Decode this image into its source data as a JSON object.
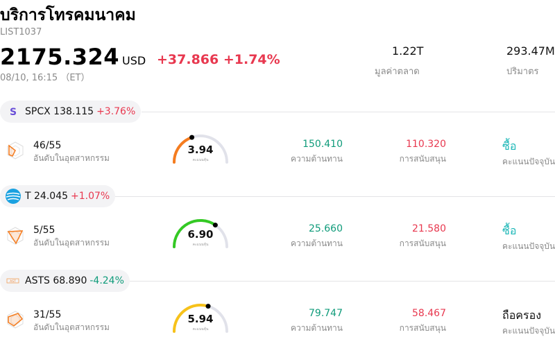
{
  "header": {
    "title": "บริการโทรคมนาคม",
    "ticker": "LIST1037",
    "price": "2175.324",
    "currency": "USD",
    "change": "+37.866 +1.74%",
    "timestamp": "08/10, 16:15 （ET）",
    "market_cap_value": "1.22T",
    "market_cap_label": "มูลค่าตลาด",
    "volume_value": "293.47M",
    "volume_label": "ปริมาตร"
  },
  "colors": {
    "up": "#e8384f",
    "down": "#0f9b7a",
    "buy": "#19b6b6"
  },
  "stocks": [
    {
      "symbol": "SPCX",
      "price": "138.115",
      "change": "+3.76%",
      "direction": "up",
      "logo": "spcx-logo-icon",
      "rank": "46/55",
      "rank_label": "อันดับในอุตสาหกรรม",
      "score": "3.94",
      "score_fraction": 0.394,
      "gauge_color": "#f57c1f",
      "score_label": "คะแนนหุ้น",
      "resistance": "150.410",
      "resistance_label": "ความต้านทาน",
      "support": "110.320",
      "support_label": "การสนับสนุน",
      "rating": "ซื้อ",
      "rating_type": "buy",
      "rating_label": "คะแนนปัจจุบัน"
    },
    {
      "symbol": "T",
      "price": "24.045",
      "change": "+1.07%",
      "direction": "up",
      "logo": "att-globe-icon",
      "rank": "5/55",
      "rank_label": "อันดับในอุตสาหกรรม",
      "score": "6.90",
      "score_fraction": 0.69,
      "gauge_color": "#34c924",
      "score_label": "คะแนนหุ้น",
      "resistance": "25.660",
      "resistance_label": "ความต้านทาน",
      "support": "21.580",
      "support_label": "การสนับสนุน",
      "rating": "ซื้อ",
      "rating_type": "buy",
      "rating_label": "คะแนนปัจจุบัน"
    },
    {
      "symbol": "ASTS",
      "price": "68.890",
      "change": "-4.24%",
      "direction": "down",
      "logo": "asts-logo-icon",
      "rank": "31/55",
      "rank_label": "อันดับในอุตสาหกรรม",
      "score": "5.94",
      "score_fraction": 0.594,
      "gauge_color": "#f7c21a",
      "score_label": "คะแนนหุ้น",
      "resistance": "79.747",
      "resistance_label": "ความต้านทาน",
      "support": "58.467",
      "support_label": "การสนับสนุน",
      "rating": "ถือครอง",
      "rating_type": "hold",
      "rating_label": "คะแนนปัจจุบัน"
    }
  ]
}
